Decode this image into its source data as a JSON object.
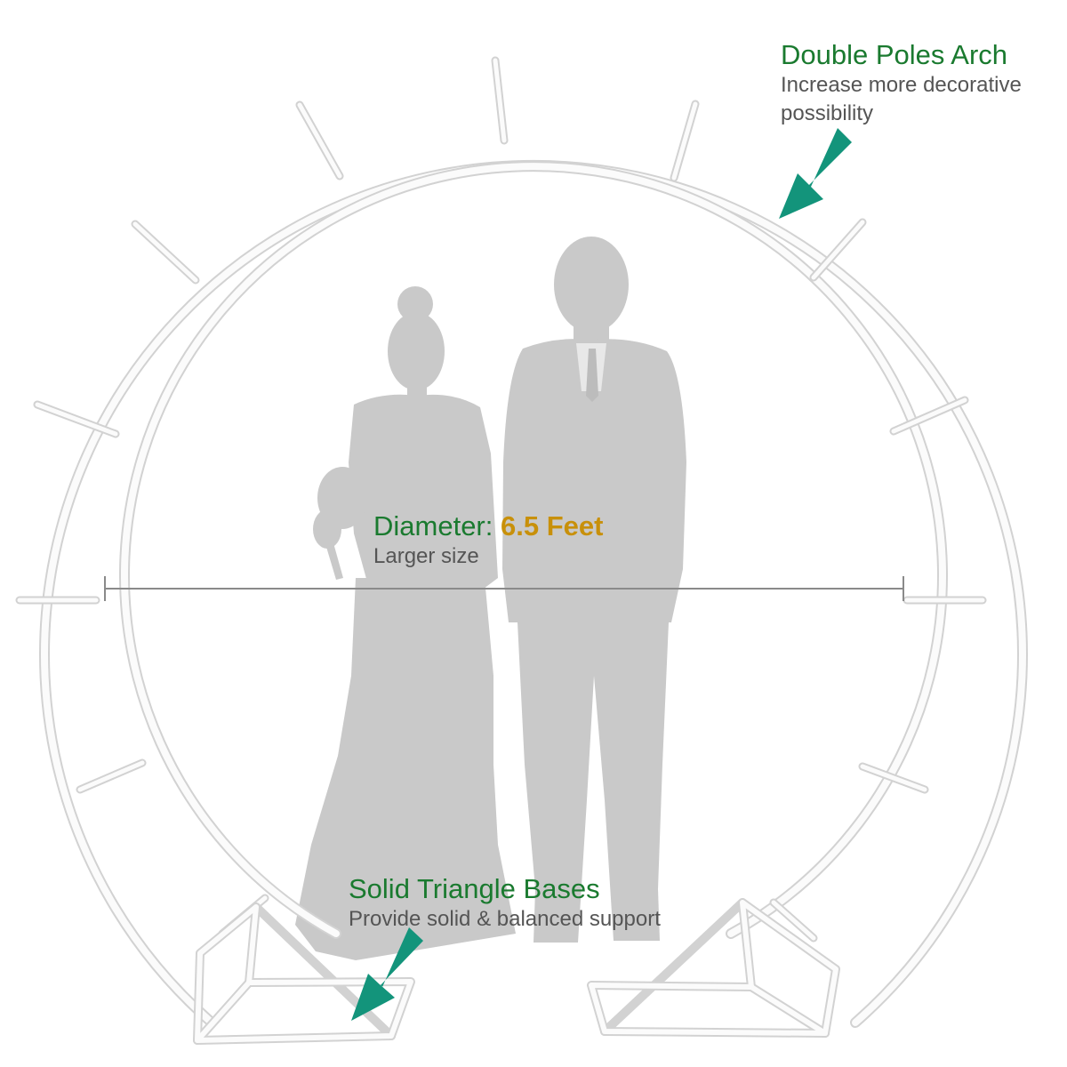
{
  "colors": {
    "title_green": "#1a7a2f",
    "value_gold": "#c8900a",
    "subtitle_gray": "#555555",
    "arrow_teal": "#13947b",
    "silhouette_gray": "#c9c9c9",
    "arch_white": "#fbfbfb",
    "arch_outline": "#d2d2d2"
  },
  "annotations": {
    "top": {
      "title": "Double Poles Arch",
      "subtitle": "Increase more decorative possibility",
      "icon": "arrow-down-left-icon"
    },
    "diameter": {
      "label": "Diameter:",
      "value": "6.5 Feet",
      "subtitle": "Larger size"
    },
    "bases": {
      "title": "Solid Triangle Bases",
      "subtitle": "Provide solid & balanced support",
      "icon": "arrow-down-left-icon"
    }
  }
}
